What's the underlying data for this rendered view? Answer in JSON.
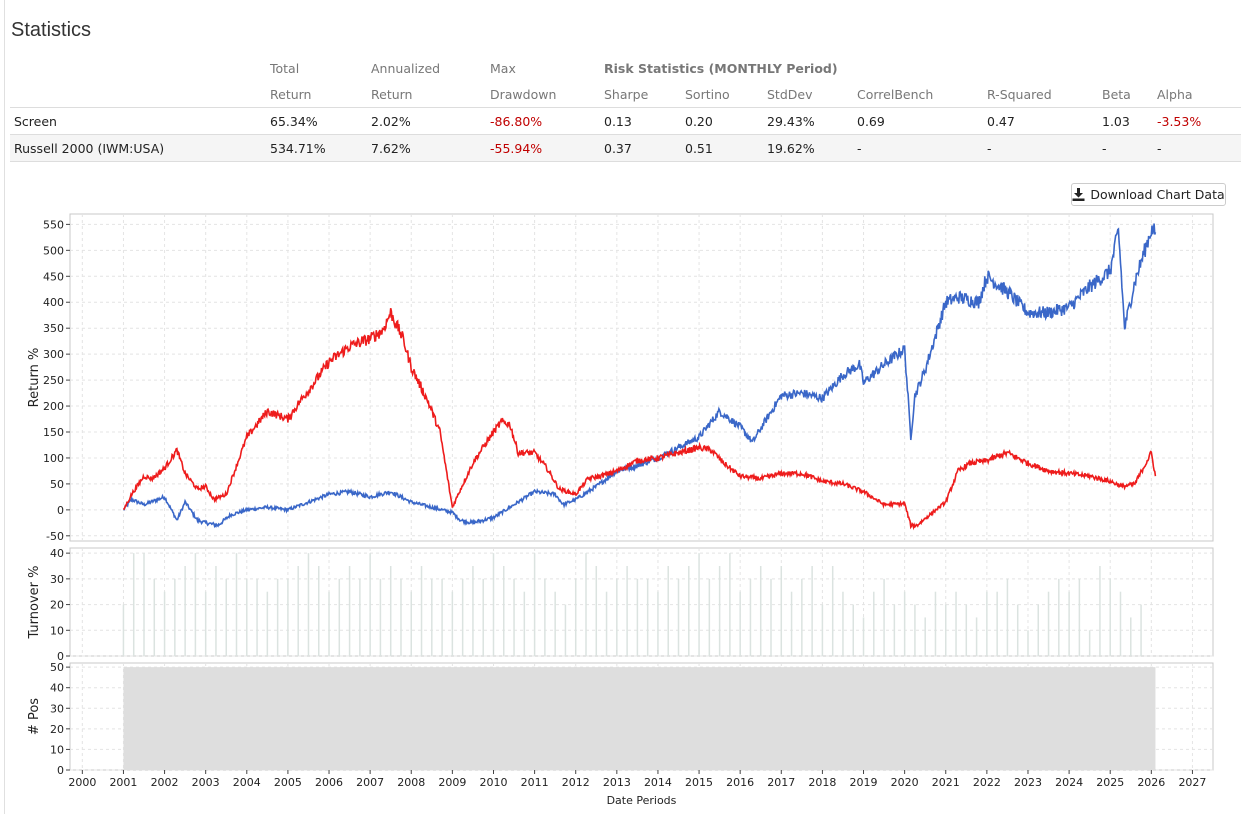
{
  "page": {
    "title": "Statistics",
    "download_label": "Download Chart Data"
  },
  "stats_table": {
    "header_row1": [
      "",
      "Total",
      "Annualized",
      "Max",
      "Risk Statistics (MONTHLY Period)",
      "",
      "",
      "",
      "",
      "",
      ""
    ],
    "header_row2": [
      "",
      "Return",
      "Return",
      "Drawdown",
      "Sharpe",
      "Sortino",
      "StdDev",
      "CorrelBench",
      "R-Squared",
      "Beta",
      "Alpha"
    ],
    "rows": [
      [
        "Screen",
        "65.34%",
        "2.02%",
        "-86.80%",
        "0.13",
        "0.20",
        "29.43%",
        "0.69",
        "0.47",
        "1.03",
        "-3.53%"
      ],
      [
        "Russell 2000 (IWM:USA)",
        "534.71%",
        "7.62%",
        "-55.94%",
        "0.37",
        "0.51",
        "19.62%",
        "-",
        "-",
        "-",
        "-"
      ]
    ]
  },
  "colors": {
    "screen_line": "#ee1c1c",
    "benchmark_line": "#3a67c8",
    "negative_value": "#c00000",
    "positions_fill": "#dedede",
    "turnover_bar": "#dbe3e0"
  },
  "chart_data": [
    {
      "type": "line",
      "ylabel": "Return %",
      "ylim": [
        -60,
        570
      ],
      "yticks": [
        -50,
        0,
        50,
        100,
        150,
        200,
        250,
        300,
        350,
        400,
        450,
        500,
        550
      ],
      "grid": true,
      "series": [
        {
          "x": [
            2001.0,
            2001.2,
            2001.5,
            2001.7,
            2002.0,
            2002.3,
            2002.5,
            2002.8,
            2003.0,
            2003.2,
            2003.5,
            2004.0,
            2004.5,
            2005.0,
            2005.3,
            2005.5,
            2006.0,
            2006.5,
            2007.0,
            2007.3,
            2007.5,
            2007.8,
            2008.0,
            2008.4,
            2008.7,
            2009.0,
            2009.2,
            2009.5,
            2009.7,
            2010.0,
            2010.2,
            2010.4,
            2010.6,
            2011.0,
            2011.3,
            2011.6,
            2012.0,
            2012.3,
            2012.6,
            2013.0,
            2013.5,
            2014.0,
            2014.5,
            2015.0,
            2015.3,
            2015.6,
            2016.0,
            2016.5,
            2017.0,
            2017.5,
            2018.0,
            2018.5,
            2019.0,
            2019.5,
            2020.0,
            2020.15,
            2020.3,
            2020.6,
            2021.0,
            2021.3,
            2021.6,
            2022.0,
            2022.5,
            2023.0,
            2023.5,
            2024.0,
            2024.5,
            2025.0,
            2025.3,
            2025.6,
            2026.0,
            2026.1
          ],
          "y": [
            0,
            30,
            65,
            60,
            80,
            115,
            70,
            40,
            45,
            20,
            30,
            140,
            190,
            175,
            210,
            230,
            285,
            315,
            330,
            345,
            380,
            330,
            275,
            210,
            150,
            5,
            40,
            90,
            115,
            150,
            170,
            165,
            110,
            110,
            80,
            40,
            30,
            60,
            65,
            75,
            95,
            100,
            110,
            120,
            115,
            90,
            65,
            60,
            70,
            70,
            55,
            50,
            35,
            10,
            12,
            -30,
            -30,
            -10,
            15,
            75,
            90,
            95,
            110,
            90,
            75,
            70,
            65,
            55,
            45,
            50,
            110,
            65
          ]
        },
        {
          "x": [
            2001.0,
            2001.2,
            2001.5,
            2002.0,
            2002.3,
            2002.5,
            2002.8,
            2003.0,
            2003.3,
            2003.6,
            2004.0,
            2004.5,
            2005.0,
            2005.5,
            2006.0,
            2006.5,
            2007.0,
            2007.5,
            2008.0,
            2008.5,
            2009.0,
            2009.2,
            2009.5,
            2010.0,
            2010.5,
            2011.0,
            2011.5,
            2011.7,
            2012.0,
            2012.5,
            2013.0,
            2013.5,
            2014.0,
            2014.5,
            2015.0,
            2015.5,
            2016.0,
            2016.3,
            2016.6,
            2017.0,
            2017.5,
            2018.0,
            2018.5,
            2018.9,
            2019.0,
            2019.5,
            2020.0,
            2020.15,
            2020.25,
            2020.5,
            2021.0,
            2021.3,
            2021.8,
            2022.0,
            2022.5,
            2023.0,
            2023.5,
            2024.0,
            2024.5,
            2025.0,
            2025.2,
            2025.35,
            2025.6,
            2026.0,
            2026.1
          ],
          "y": [
            0,
            20,
            10,
            25,
            -20,
            15,
            -20,
            -25,
            -30,
            -10,
            0,
            5,
            0,
            15,
            30,
            35,
            25,
            35,
            15,
            5,
            -5,
            -20,
            -25,
            -15,
            10,
            35,
            30,
            10,
            20,
            45,
            75,
            85,
            100,
            120,
            140,
            190,
            160,
            130,
            170,
            220,
            225,
            215,
            260,
            280,
            245,
            280,
            310,
            140,
            220,
            270,
            400,
            410,
            400,
            450,
            420,
            380,
            380,
            390,
            430,
            460,
            540,
            350,
            440,
            540,
            535
          ]
        }
      ]
    },
    {
      "type": "bar",
      "ylabel": "Turnover %",
      "ylim": [
        0,
        42
      ],
      "yticks": [
        0,
        10,
        20,
        30,
        40
      ],
      "grid": true,
      "x_start": 2001.0,
      "x_step": 0.25,
      "values": [
        20,
        40,
        40,
        30,
        25,
        30,
        35,
        40,
        25,
        35,
        30,
        40,
        30,
        30,
        25,
        30,
        30,
        35,
        40,
        35,
        25,
        30,
        35,
        30,
        40,
        30,
        35,
        30,
        25,
        35,
        30,
        30,
        25,
        30,
        35,
        30,
        40,
        35,
        30,
        25,
        40,
        30,
        25,
        20,
        30,
        40,
        35,
        25,
        30,
        35,
        30,
        30,
        25,
        35,
        30,
        35,
        40,
        30,
        35,
        40,
        25,
        30,
        35,
        30,
        35,
        25,
        30,
        35,
        20,
        35,
        25,
        20,
        15,
        25,
        30,
        20,
        25,
        20,
        15,
        25,
        20,
        25,
        20,
        15,
        25,
        25,
        30,
        20,
        10,
        20,
        25,
        30,
        25,
        30,
        10,
        35,
        30,
        25,
        15,
        20
      ]
    },
    {
      "type": "area",
      "ylabel": "# Pos",
      "xlabel": "Date Periods",
      "ylim": [
        0,
        52
      ],
      "yticks": [
        0,
        10,
        20,
        30,
        40,
        50
      ],
      "x_range": [
        2001.0,
        2026.1
      ],
      "value": 50,
      "xlim": [
        1999.7,
        2027.5
      ],
      "xticks": [
        2000,
        2001,
        2002,
        2003,
        2004,
        2005,
        2006,
        2007,
        2008,
        2009,
        2010,
        2011,
        2012,
        2013,
        2014,
        2015,
        2016,
        2017,
        2018,
        2019,
        2020,
        2021,
        2022,
        2023,
        2024,
        2025,
        2026,
        2027
      ],
      "grid": true
    }
  ]
}
